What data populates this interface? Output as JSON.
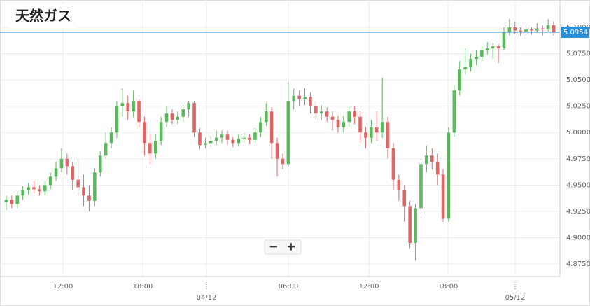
{
  "chart_data": {
    "type": "candlestick",
    "title": "天然ガス",
    "open": [
      4.934,
      4.936,
      4.932,
      4.94,
      4.945,
      4.948,
      4.946,
      4.944,
      4.95,
      4.958,
      4.966,
      4.975,
      4.968,
      4.955,
      4.948,
      4.94,
      4.935,
      4.962,
      4.978,
      4.99,
      5.0,
      5.025,
      5.028,
      5.02,
      5.03,
      5.01,
      4.99,
      4.98,
      4.992,
      5.01,
      5.018,
      5.012,
      5.015,
      5.022,
      5.028,
      5.0,
      4.988,
      4.99,
      4.992,
      4.995,
      4.998,
      4.993,
      4.99,
      4.994,
      4.995,
      4.993,
      5.0,
      5.01,
      5.02,
      4.99,
      4.975,
      4.97,
      5.03,
      5.035,
      5.032,
      5.034,
      5.025,
      5.018,
      5.02,
      5.015,
      5.012,
      5.005,
      5.01,
      5.02,
      5.015,
      5.0,
      4.995,
      5.005,
      5.0,
      5.01,
      4.985,
      4.955,
      4.945,
      4.93,
      4.895,
      4.928,
      4.97,
      4.978,
      4.972,
      4.96,
      4.918,
      5.0,
      5.04,
      5.06,
      5.062,
      5.07,
      5.072,
      5.078,
      5.08,
      5.082,
      5.08,
      5.095,
      5.1,
      5.097,
      5.096,
      5.098,
      5.097,
      5.099,
      5.098,
      5.102
    ],
    "high": [
      4.94,
      4.94,
      4.944,
      4.949,
      4.952,
      4.954,
      4.95,
      4.954,
      4.962,
      4.972,
      4.985,
      4.98,
      4.972,
      4.975,
      4.96,
      4.95,
      4.966,
      4.982,
      5.0,
      5.005,
      5.03,
      5.042,
      5.035,
      5.04,
      5.032,
      5.015,
      4.998,
      4.998,
      5.015,
      5.025,
      5.022,
      5.02,
      5.026,
      5.03,
      5.03,
      5.004,
      4.995,
      4.997,
      5.002,
      5.002,
      5.002,
      4.996,
      4.998,
      4.999,
      4.998,
      5.004,
      5.015,
      5.028,
      5.024,
      4.995,
      4.98,
      5.048,
      5.042,
      5.04,
      5.042,
      5.038,
      5.03,
      5.026,
      5.024,
      5.02,
      5.016,
      5.016,
      5.024,
      5.025,
      5.02,
      5.005,
      5.012,
      5.02,
      5.052,
      5.015,
      4.99,
      4.96,
      4.95,
      4.935,
      4.932,
      4.975,
      4.988,
      4.985,
      4.98,
      4.965,
      5.005,
      5.045,
      5.068,
      5.08,
      5.075,
      5.078,
      5.082,
      5.086,
      5.085,
      5.084,
      5.1,
      5.108,
      5.105,
      5.1,
      5.102,
      5.1,
      5.104,
      5.102,
      5.108,
      5.106
    ],
    "low": [
      4.926,
      4.928,
      4.928,
      4.936,
      4.941,
      4.942,
      4.94,
      4.94,
      4.946,
      4.954,
      4.962,
      4.96,
      4.945,
      4.94,
      4.93,
      4.925,
      4.93,
      4.958,
      4.975,
      4.985,
      4.995,
      5.015,
      5.012,
      5.015,
      5.005,
      4.978,
      4.97,
      4.975,
      4.988,
      5.005,
      5.008,
      5.008,
      5.01,
      5.015,
      4.996,
      4.984,
      4.985,
      4.987,
      4.988,
      4.99,
      4.988,
      4.986,
      4.987,
      4.99,
      4.989,
      4.99,
      4.996,
      5.006,
      4.975,
      4.958,
      4.965,
      4.968,
      5.022,
      5.025,
      5.026,
      5.018,
      5.012,
      5.012,
      5.01,
      5.002,
      5.0,
      5.0,
      5.005,
      5.008,
      4.99,
      4.985,
      4.99,
      4.992,
      4.995,
      4.975,
      4.945,
      4.935,
      4.915,
      4.89,
      4.878,
      4.922,
      4.962,
      4.965,
      4.95,
      4.915,
      4.915,
      4.996,
      5.035,
      5.055,
      5.058,
      5.064,
      5.068,
      5.074,
      5.07,
      5.066,
      5.078,
      5.092,
      5.094,
      5.092,
      5.092,
      5.093,
      5.095,
      5.092,
      5.096,
      5.092
    ],
    "close": [
      4.936,
      4.932,
      4.94,
      4.945,
      4.948,
      4.946,
      4.944,
      4.95,
      4.958,
      4.966,
      4.975,
      4.968,
      4.955,
      4.948,
      4.94,
      4.935,
      4.962,
      4.978,
      4.99,
      5.0,
      5.025,
      5.028,
      5.02,
      5.03,
      5.01,
      4.99,
      4.98,
      4.992,
      5.01,
      5.018,
      5.012,
      5.015,
      5.022,
      5.028,
      5.0,
      4.988,
      4.99,
      4.992,
      4.995,
      4.998,
      4.993,
      4.99,
      4.994,
      4.995,
      4.993,
      5.0,
      5.01,
      5.02,
      4.99,
      4.975,
      4.97,
      5.03,
      5.035,
      5.032,
      5.034,
      5.025,
      5.018,
      5.02,
      5.015,
      5.012,
      5.005,
      5.01,
      5.02,
      5.015,
      5.0,
      4.995,
      5.005,
      5.0,
      5.01,
      4.985,
      4.955,
      4.945,
      4.93,
      4.895,
      4.928,
      4.97,
      4.978,
      4.972,
      4.96,
      4.918,
      5.0,
      5.04,
      5.06,
      5.062,
      5.07,
      5.072,
      5.078,
      5.08,
      5.082,
      5.08,
      5.095,
      5.1,
      5.097,
      5.096,
      5.098,
      5.097,
      5.099,
      5.098,
      5.102,
      5.095
    ],
    "up_color": "#5cb85c",
    "down_color": "#e06666",
    "xlim": [
      0,
      100
    ],
    "xticks": [
      {
        "value": 10.76,
        "label": "12:00"
      },
      {
        "value": 25.19,
        "label": "18:00"
      },
      {
        "value": 51.52,
        "label": "06:00"
      },
      {
        "value": 66.08,
        "label": "12:00"
      },
      {
        "value": 80.38,
        "label": "18:00"
      }
    ],
    "date_ticks": [
      {
        "value": 36.71,
        "label": "04/12"
      },
      {
        "value": 92.53,
        "label": "05/12"
      }
    ],
    "ylim": [
      4.863,
      5.126
    ],
    "yticks": [
      {
        "value": 4.875,
        "label": "4.8750"
      },
      {
        "value": 4.9,
        "label": "4.9000"
      },
      {
        "value": 4.925,
        "label": "4.9250"
      },
      {
        "value": 4.95,
        "label": "4.9500"
      },
      {
        "value": 4.975,
        "label": "4.9750"
      },
      {
        "value": 5.0,
        "label": "5.0000"
      },
      {
        "value": 5.025,
        "label": "5.0250"
      },
      {
        "value": 5.05,
        "label": "5.0500"
      },
      {
        "value": 5.075,
        "label": "5.0750"
      },
      {
        "value": 5.1,
        "label": "5.1000"
      }
    ],
    "last_price": 5.0954,
    "last_price_color": "#2a8fd6",
    "grid": true,
    "zoom_controls": [
      "−",
      "+"
    ]
  }
}
